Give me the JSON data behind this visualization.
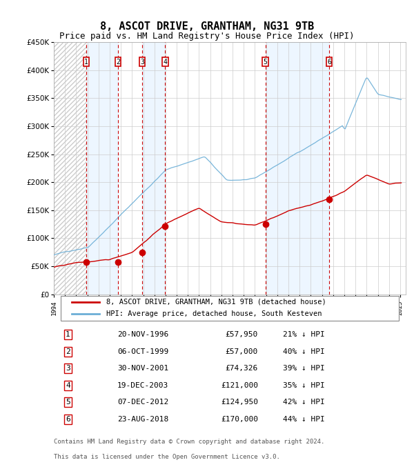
{
  "title": "8, ASCOT DRIVE, GRANTHAM, NG31 9TB",
  "subtitle": "Price paid vs. HM Land Registry's House Price Index (HPI)",
  "legend_line1": "8, ASCOT DRIVE, GRANTHAM, NG31 9TB (detached house)",
  "legend_line2": "HPI: Average price, detached house, South Kesteven",
  "footnote1": "Contains HM Land Registry data © Crown copyright and database right 2024.",
  "footnote2": "This data is licensed under the Open Government Licence v3.0.",
  "sales": [
    {
      "num": 1,
      "date_str": "20-NOV-1996",
      "price": 57950,
      "pct": "21% ↓ HPI",
      "year": 1996.9
    },
    {
      "num": 2,
      "date_str": "06-OCT-1999",
      "price": 57000,
      "pct": "40% ↓ HPI",
      "year": 1999.75
    },
    {
      "num": 3,
      "date_str": "30-NOV-2001",
      "price": 74326,
      "pct": "39% ↓ HPI",
      "year": 2001.9
    },
    {
      "num": 4,
      "date_str": "19-DEC-2003",
      "price": 121000,
      "pct": "35% ↓ HPI",
      "year": 2003.97
    },
    {
      "num": 5,
      "date_str": "07-DEC-2012",
      "price": 124950,
      "pct": "42% ↓ HPI",
      "year": 2012.94
    },
    {
      "num": 6,
      "date_str": "23-AUG-2018",
      "price": 170000,
      "pct": "44% ↓ HPI",
      "year": 2018.65
    }
  ],
  "hpi_color": "#6baed6",
  "price_color": "#cc0000",
  "sale_dot_color": "#cc0000",
  "grid_color": "#cccccc",
  "dashed_line_color": "#cc0000",
  "bg_stripe_color": "#ddeeff",
  "ylim": [
    0,
    450000
  ],
  "yticks": [
    0,
    50000,
    100000,
    150000,
    200000,
    250000,
    300000,
    350000,
    400000,
    450000
  ],
  "xlim_start": 1994.0,
  "xlim_end": 2025.5,
  "xticks": [
    1994,
    1995,
    1996,
    1997,
    1998,
    1999,
    2000,
    2001,
    2002,
    2003,
    2004,
    2005,
    2006,
    2007,
    2008,
    2009,
    2010,
    2011,
    2012,
    2013,
    2014,
    2015,
    2016,
    2017,
    2018,
    2019,
    2020,
    2021,
    2022,
    2023,
    2024,
    2025
  ]
}
